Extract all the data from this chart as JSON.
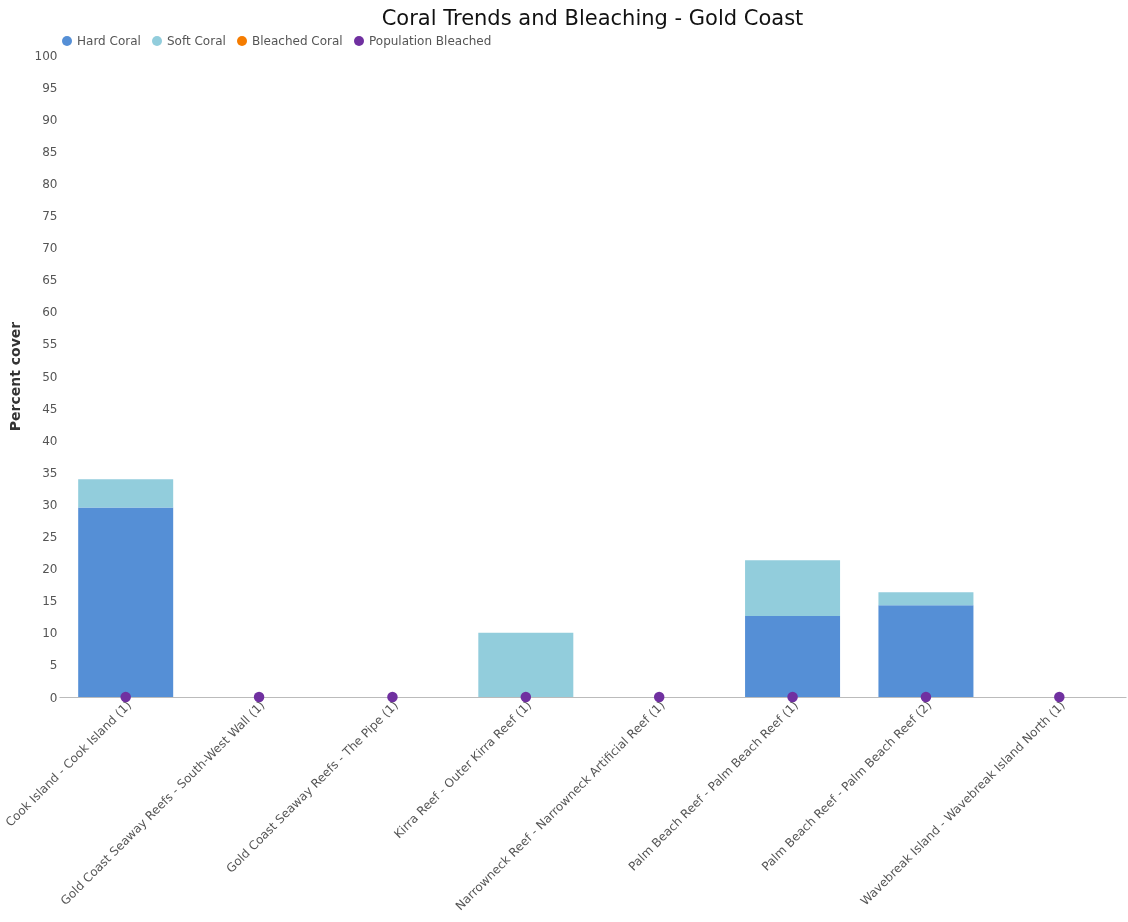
{
  "chart_data": {
    "type": "bar",
    "title": "Coral Trends and Bleaching - Gold Coast",
    "ylabel": "Percent cover",
    "categories": [
      "Cook Island - Cook Island (1)",
      "Gold Coast Seaway Reefs - South-West Wall (1)",
      "Gold Coast Seaway Reefs - The Pipe (1)",
      "Kirra Reef - Outer Kirra Reef (1)",
      "Narrowneck Reef - Narrowneck Artificial Reef (1)",
      "Palm Beach Reef - Palm Beach Reef (1)",
      "Palm Beach Reef - Palm Beach Reef (2)",
      "Wavebreak Island - Wavebreak Island North (1)"
    ],
    "stacked": true,
    "ylim": [
      0,
      100
    ],
    "yticks": [
      0,
      5,
      10,
      15,
      20,
      25,
      30,
      35,
      40,
      45,
      50,
      55,
      60,
      65,
      70,
      75,
      80,
      85,
      90,
      95,
      100
    ],
    "grid": false,
    "legend": "top",
    "series": [
      {
        "name": "Hard Coral",
        "color": "#558fd6",
        "values": [
          29.5,
          0,
          0,
          0,
          0,
          12.6,
          14.3,
          0
        ]
      },
      {
        "name": "Soft Coral",
        "color": "#92cddc",
        "values": [
          4.4,
          0,
          0,
          10,
          0,
          8.7,
          2,
          0
        ]
      },
      {
        "name": "Bleached Coral",
        "color": "#f57c00",
        "values": [
          0,
          0,
          0,
          0,
          0,
          0,
          0,
          0
        ]
      },
      {
        "name": "Population Bleached",
        "type": "scatter",
        "color": "#7030a0",
        "marker": "circle",
        "x": [
          "Cook Island - Cook Island (1)",
          "Gold Coast Seaway Reefs - South-West Wall (1)",
          "Gold Coast Seaway Reefs - The Pipe (1)",
          "Kirra Reef - Outer Kirra Reef (1)",
          "Narrowneck Reef - Narrowneck Artificial Reef (1)",
          "Palm Beach Reef - Palm Beach Reef (1)",
          "Palm Beach Reef - Palm Beach Reef (2)",
          "Wavebreak Island - Wavebreak Island North (1)"
        ],
        "values": [
          0,
          0,
          0,
          0,
          0,
          0,
          0,
          0
        ]
      }
    ]
  }
}
